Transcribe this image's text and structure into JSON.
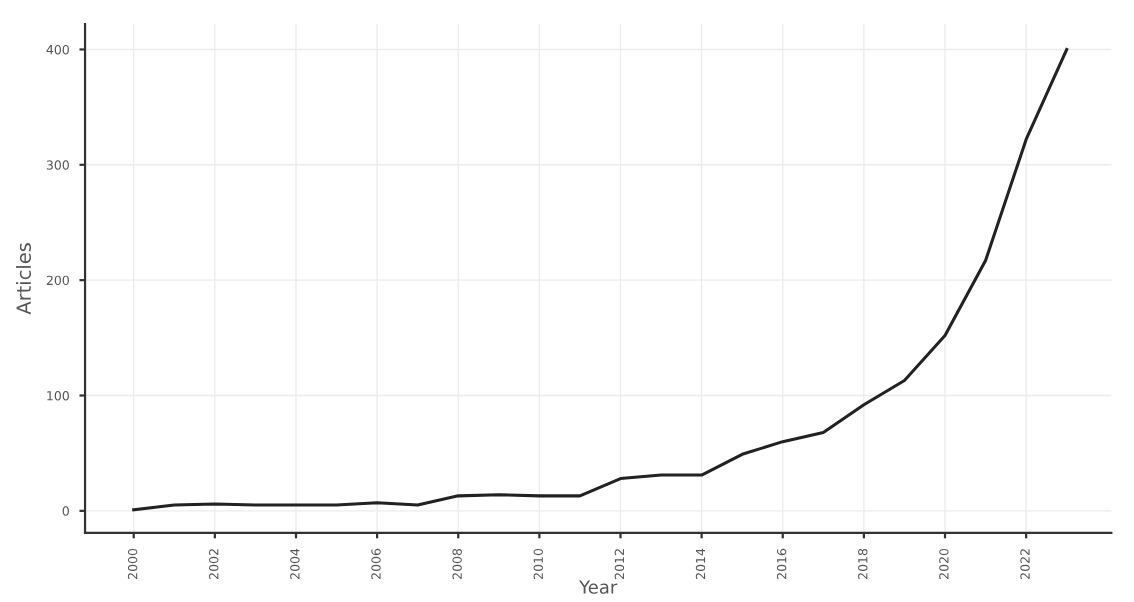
{
  "chart_data": {
    "type": "line",
    "xlabel": "Year",
    "ylabel": "Articles",
    "x": [
      2000,
      2001,
      2002,
      2003,
      2004,
      2005,
      2006,
      2007,
      2008,
      2009,
      2010,
      2011,
      2012,
      2013,
      2014,
      2015,
      2016,
      2017,
      2018,
      2019,
      2020,
      2021,
      2022,
      2023
    ],
    "series": [
      {
        "color": "#222222",
        "values": [
          1,
          5,
          6,
          5,
          5,
          5,
          7,
          5,
          13,
          14,
          13,
          13,
          28,
          31,
          31,
          49,
          60,
          68,
          92,
          113,
          152,
          217,
          322,
          400
        ]
      }
    ],
    "xlim": [
      1998.8,
      2024.1
    ],
    "xticks": [
      2000,
      2002,
      2004,
      2006,
      2008,
      2010,
      2012,
      2014,
      2016,
      2018,
      2020,
      2022
    ],
    "ylim": [
      -19,
      422
    ],
    "yticks": [
      0,
      100,
      200,
      300,
      400
    ],
    "grid": true,
    "marker": "none",
    "line_style": "solid"
  }
}
